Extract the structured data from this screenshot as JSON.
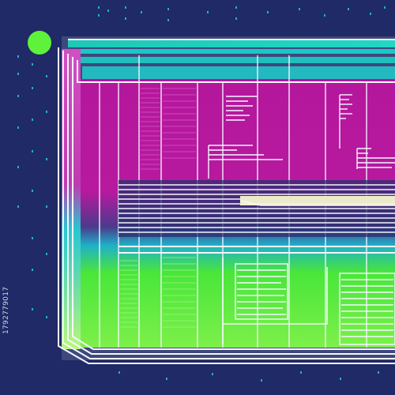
{
  "stock_id": "1792779017",
  "colors": {
    "background": "#1f2a66",
    "dots": "#2ad3c8",
    "status_dot": "#5ef23a",
    "frame_teal": "#19c7c6",
    "frame_white": "#f4f7ff",
    "magenta": "#b5179c",
    "magenta_light": "#c94bb8",
    "green": "#49e63a",
    "green_light": "#8df35a",
    "navy": "#2a2f6e"
  }
}
